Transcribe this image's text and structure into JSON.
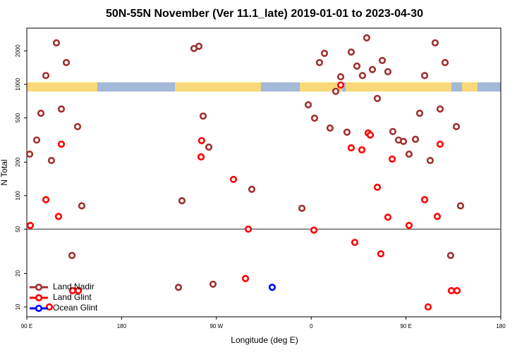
{
  "chart_data": {
    "type": "scatter",
    "title": "50N-55N November (Ver 11.1_late)   2019-01-01 to 2023-04-30",
    "x_label": "Longitude (deg E)",
    "y_label": "N Total",
    "xlim": [
      90,
      540
    ],
    "xticks": [
      {
        "value": 90,
        "label": "90 E"
      },
      180,
      {
        "value": 270,
        "label": "90 W"
      },
      {
        "value": 360,
        "label": "0"
      },
      {
        "value": 450,
        "label": "90 E"
      },
      {
        "value": 540,
        "label": "180"
      }
    ],
    "ylim": [
      8.15,
      3200
    ],
    "yticks": [
      10,
      20,
      50,
      100,
      200,
      500,
      1000,
      2000
    ],
    "log_y": true,
    "grid": false,
    "reference_line": 50,
    "legend": "lower left",
    "series": [
      {
        "name": "Land Nadir",
        "color": "#a03030",
        "x": [
          92.7,
          99.4,
          103.4,
          108.1,
          113.4,
          118.1,
          122.8,
          127.5,
          132.9,
          138.2,
          142.2,
          234,
          237.3,
          248.7,
          253.4,
          257.4,
          262.8,
          266.8,
          303.6,
          351.2,
          357.2,
          363.2,
          367.9,
          372.6,
          377.9,
          383.3,
          388,
          394,
          398,
          403.4,
          408.7,
          412.7,
          418.1,
          422.8,
          427.5,
          432.8,
          437.5,
          442.9,
          447.6,
          452.9,
          459,
          463,
          467.7,
          473,
          477.7,
          482.4,
          487.1,
          492.4,
          497.8,
          501.8
        ],
        "values": [
          236,
          316,
          550,
          1200,
          207,
          2360,
          600,
          1570,
          29,
          417,
          81,
          15,
          90,
          2100,
          2200,
          519,
          273,
          16,
          114,
          77,
          655,
          497,
          1570,
          1900,
          405,
          865,
          1170,
          372,
          1950,
          1460,
          1200,
          2620,
          1360,
          747,
          1640,
          1300,
          377,
          316,
          307,
          236,
          321,
          550,
          1200,
          207,
          2360,
          600,
          1570,
          29,
          417,
          81
        ]
      },
      {
        "name": "Land Glint",
        "color": "#ff0000",
        "x": [
          93.3,
          108.1,
          111.4,
          120.1,
          122.8,
          133.5,
          138.9,
          255.4,
          256,
          286.2,
          297.6,
          300.3,
          362.6,
          388,
          398,
          401.4,
          408.1,
          414.1,
          416.1,
          422.8,
          426.1,
          432.8,
          436.9,
          452.9,
          467.7,
          471,
          479.7,
          482.4,
          493.1,
          498.5
        ],
        "values": [
          54,
          92,
          10,
          65,
          290,
          14,
          14,
          223,
          312,
          140,
          18,
          50,
          49,
          986,
          269,
          38,
          258,
          366,
          350,
          119,
          30,
          64,
          213,
          54,
          92,
          10,
          65,
          290,
          14,
          14
        ]
      },
      {
        "name": "Ocean Glint",
        "color": "#0000ff",
        "x": [
          323
        ],
        "values": [
          15
        ]
      }
    ]
  }
}
